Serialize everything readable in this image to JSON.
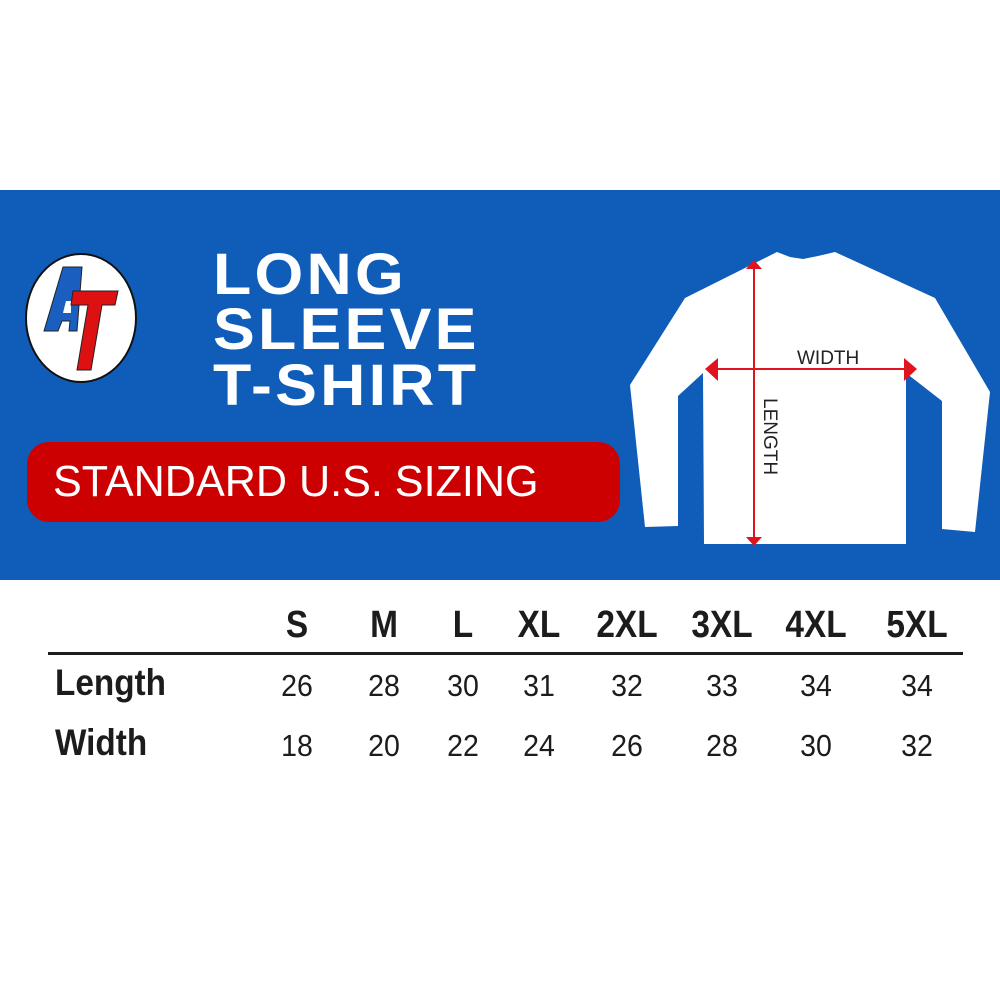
{
  "brand": {
    "logo_text": "AT",
    "colors": {
      "blue": "#1a5fc0",
      "red": "#dd1111"
    }
  },
  "title": {
    "lines": [
      "LONG",
      "SLEEVE",
      "T-SHIRT"
    ]
  },
  "badge": {
    "label": "STANDARD U.S. SIZING"
  },
  "diagram": {
    "width_label": "WIDTH",
    "length_label": "LENGTH"
  },
  "colors": {
    "band": "#0f5db8",
    "badge": "#cc0000",
    "arrow": "#e0141e"
  },
  "table": {
    "sizes": [
      "S",
      "M",
      "L",
      "XL",
      "2XL",
      "3XL",
      "4XL",
      "5XL"
    ],
    "rows": [
      {
        "label": "Length",
        "values": [
          "26",
          "28",
          "30",
          "31",
          "32",
          "33",
          "34",
          "34"
        ]
      },
      {
        "label": "Width",
        "values": [
          "18",
          "20",
          "22",
          "24",
          "26",
          "28",
          "30",
          "32"
        ]
      }
    ]
  }
}
